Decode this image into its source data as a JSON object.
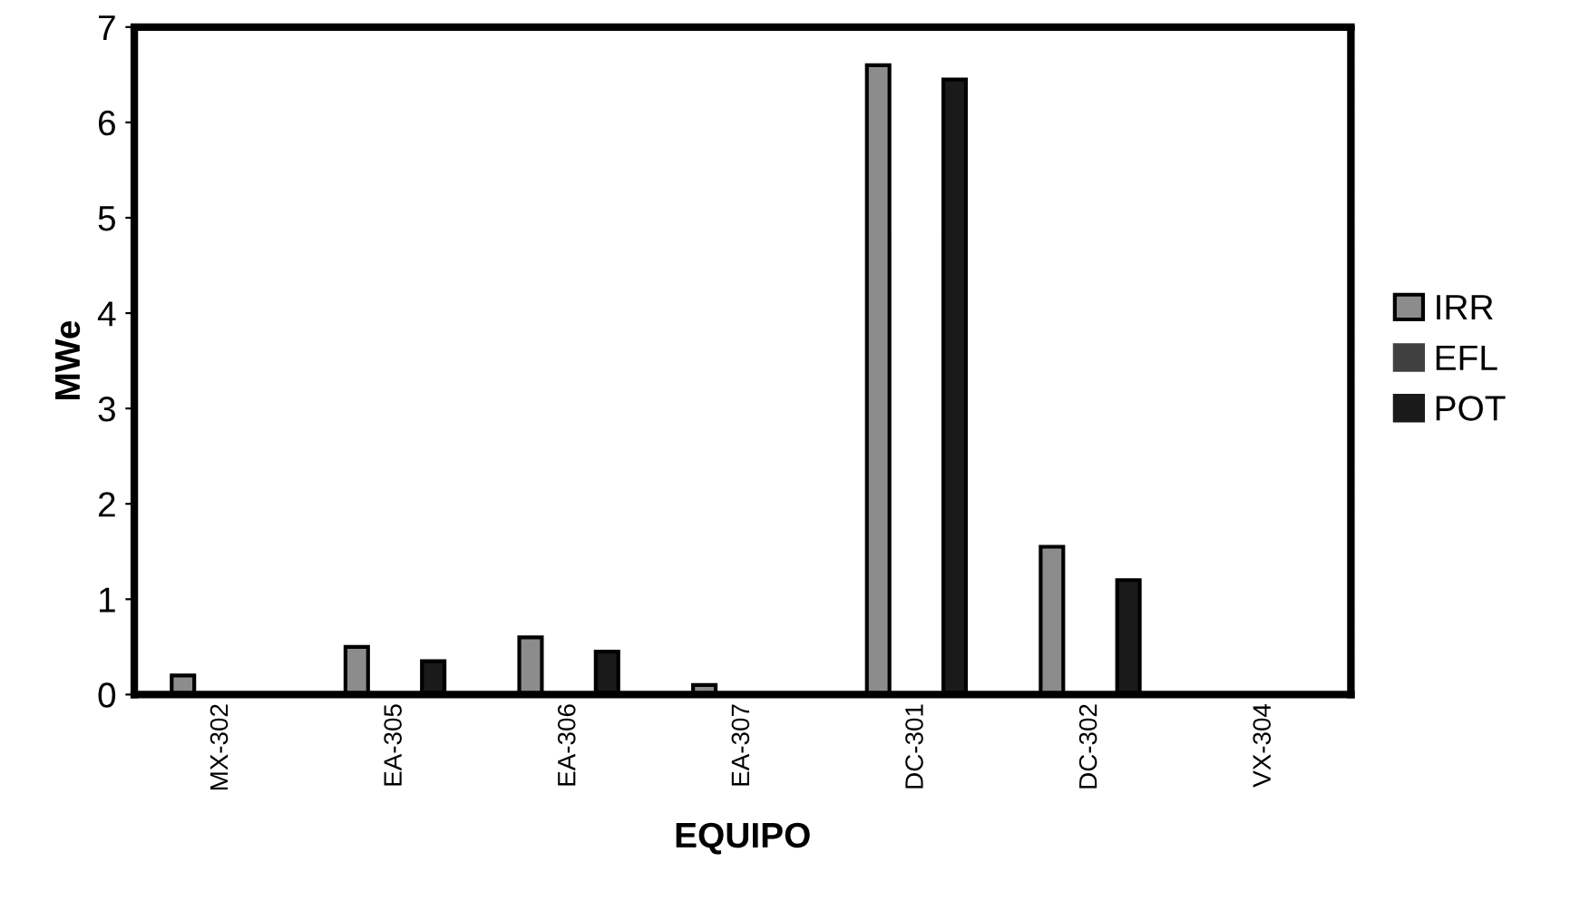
{
  "chart_data": {
    "type": "bar",
    "xlabel": "EQUIPO",
    "ylabel": "MWe",
    "categories": [
      "MX-302",
      "EA-305",
      "EA-306",
      "EA-307",
      "DC-301",
      "DC-302",
      "VX-304"
    ],
    "series": [
      {
        "name": "IRR",
        "color": "#8c8c8c",
        "values": [
          0.2,
          0.5,
          0.6,
          0.1,
          6.6,
          1.55,
          0
        ]
      },
      {
        "name": "EFL",
        "color": "#404040",
        "values": [
          0,
          0,
          0,
          0,
          0,
          0,
          0
        ]
      },
      {
        "name": "POT",
        "color": "#1a1a1a",
        "values": [
          0,
          0.35,
          0.45,
          0,
          6.45,
          1.2,
          0
        ]
      }
    ],
    "ylim": [
      0,
      7
    ],
    "yticks": [
      0,
      1,
      2,
      3,
      4,
      5,
      6,
      7
    ],
    "grid": false,
    "legend": "right"
  }
}
